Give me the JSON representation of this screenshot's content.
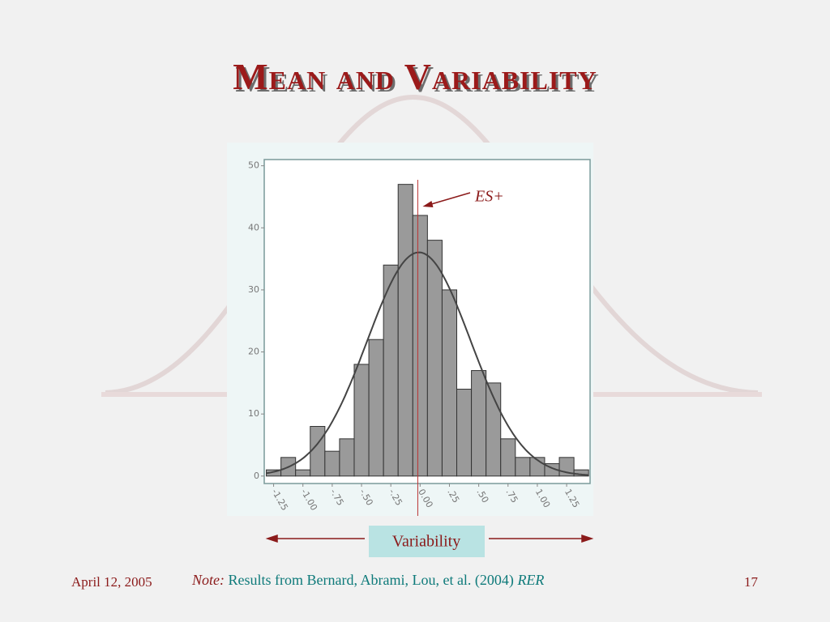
{
  "chart_data": {
    "type": "histogram",
    "title": "Mean and Variability",
    "bins": [
      -1.3125,
      -1.1875,
      -1.0625,
      -0.9375,
      -0.8125,
      -0.6875,
      -0.5625,
      -0.4375,
      -0.3125,
      -0.1875,
      -0.0625,
      0.0625,
      0.1875,
      0.3125,
      0.4375,
      0.5625,
      0.6875,
      0.8125,
      0.9375,
      1.0625,
      1.1875,
      1.3125,
      1.4375
    ],
    "counts": [
      1,
      3,
      1,
      8,
      4,
      6,
      18,
      22,
      34,
      47,
      42,
      38,
      30,
      14,
      17,
      15,
      6,
      3,
      3,
      2,
      3,
      1
    ],
    "color": "#9a9a9a",
    "xlim": [
      -1.33,
      1.45
    ],
    "xticks": [
      -1.25,
      {
        "value": -1.0,
        "label": "-1.00"
      },
      {
        "value": -0.75,
        "label": "-.75"
      },
      {
        "value": -0.5,
        "label": "-.50"
      },
      {
        "value": -0.25,
        "label": "-.25"
      },
      {
        "value": 0,
        "label": "0.00"
      },
      {
        "value": 0.25,
        "label": ".25"
      },
      {
        "value": 0.5,
        "label": ".50"
      },
      {
        "value": 0.75,
        "label": ".75"
      },
      {
        "value": 1.0,
        "label": "1.00"
      },
      1.25
    ],
    "ylim": [
      -1.2,
      51
    ],
    "yticks": [
      0,
      10,
      20,
      30,
      40,
      50
    ],
    "normal_curve": {
      "mean": -0.01,
      "sd": 0.44
    },
    "annotation": {
      "text": "ES+",
      "x": -0.02
    },
    "range_label": "Variability"
  },
  "footer": {
    "date": "April 12, 2005",
    "note_label": "Note:",
    "note_text": "Results from Bernard, Abrami, Lou, et al. (2004)",
    "note_source": "RER",
    "page": "17"
  }
}
